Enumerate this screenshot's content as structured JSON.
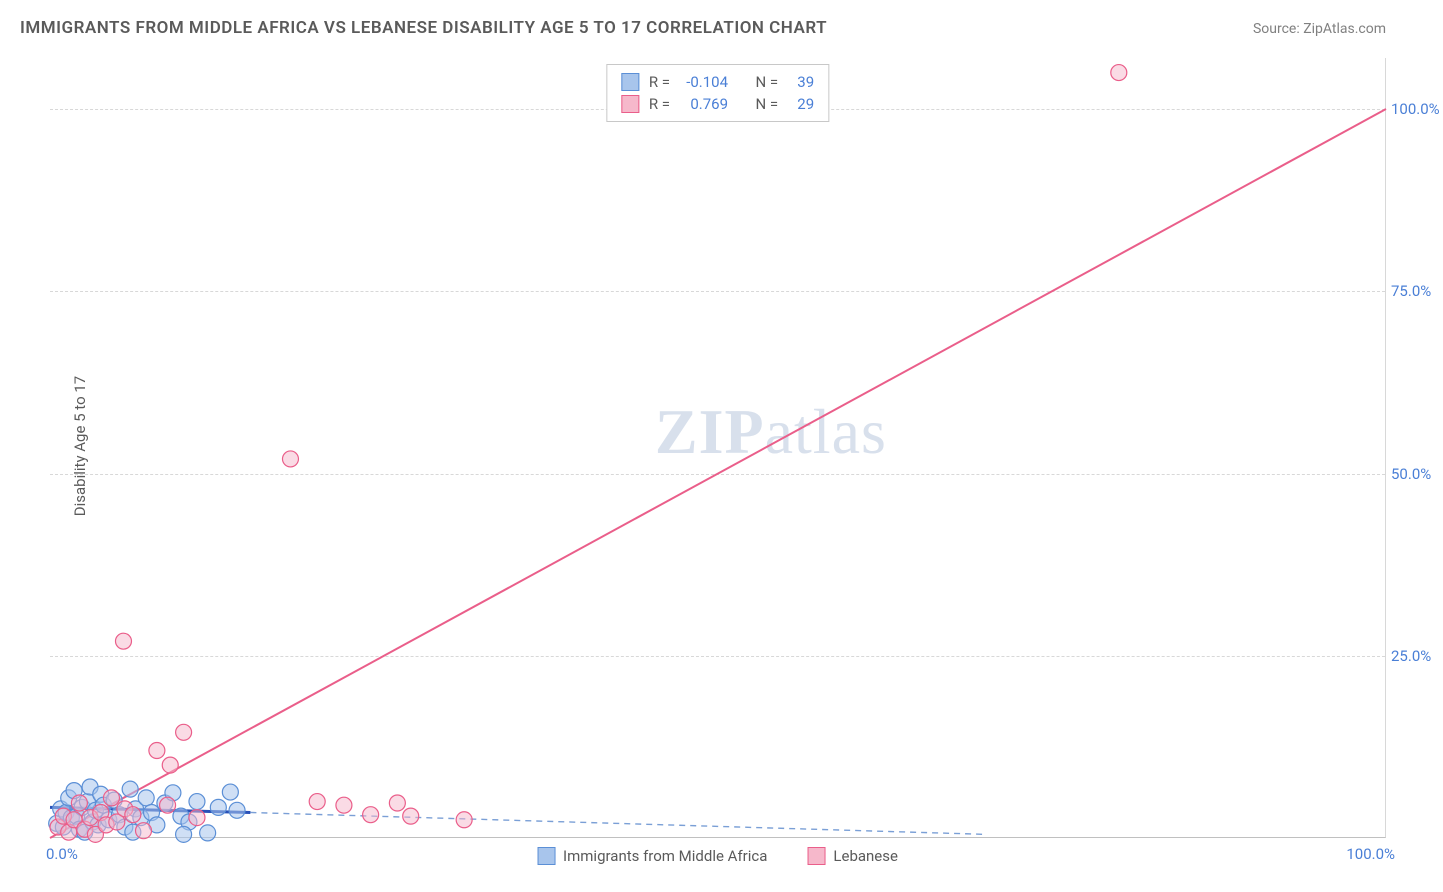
{
  "title": "IMMIGRANTS FROM MIDDLE AFRICA VS LEBANESE DISABILITY AGE 5 TO 17 CORRELATION CHART",
  "source": "Source: ZipAtlas.com",
  "watermark_left": "ZIP",
  "watermark_right": "atlas",
  "y_axis_label": "Disability Age 5 to 17",
  "chart": {
    "type": "scatter",
    "xlim": [
      0,
      100
    ],
    "ylim": [
      0,
      107
    ],
    "x_ticks": [
      {
        "pos": 0,
        "label": "0.0%"
      },
      {
        "pos": 100,
        "label": "100.0%"
      }
    ],
    "y_ticks": [
      {
        "pos": 25,
        "label": "25.0%"
      },
      {
        "pos": 50,
        "label": "50.0%"
      },
      {
        "pos": 75,
        "label": "75.0%"
      },
      {
        "pos": 100,
        "label": "100.0%"
      }
    ],
    "grid_color": "#d8d8d8",
    "background_color": "#ffffff",
    "marker_radius": 8,
    "marker_stroke_width": 1.2,
    "series": [
      {
        "id": "middle_africa",
        "label": "Immigrants from Middle Africa",
        "fill": "#a8c5ec",
        "stroke": "#5b8fd6",
        "fill_opacity": 0.55,
        "R": "-0.104",
        "N": "39",
        "trend": {
          "solid": {
            "x1": 0,
            "y1": 4.2,
            "x2": 15,
            "y2": 3.5,
            "color": "#2850b8",
            "width": 3
          },
          "dashed": {
            "x1": 15,
            "y1": 3.5,
            "x2": 70,
            "y2": 0.5,
            "color": "#7a9fd6",
            "width": 1.4,
            "dash": "6 5"
          }
        },
        "points": [
          [
            0.5,
            2
          ],
          [
            0.8,
            4
          ],
          [
            1.0,
            1.5
          ],
          [
            1.2,
            3.5
          ],
          [
            1.4,
            5.5
          ],
          [
            1.6,
            2.8
          ],
          [
            1.8,
            6.5
          ],
          [
            2.0,
            3
          ],
          [
            2.2,
            1.2
          ],
          [
            2.4,
            4.2
          ],
          [
            2.6,
            0.8
          ],
          [
            2.8,
            5
          ],
          [
            3.0,
            7
          ],
          [
            3.2,
            2.2
          ],
          [
            3.4,
            3.8
          ],
          [
            3.6,
            1.8
          ],
          [
            3.8,
            6
          ],
          [
            4.0,
            4.5
          ],
          [
            4.4,
            2.5
          ],
          [
            4.8,
            5.2
          ],
          [
            5.2,
            3.2
          ],
          [
            5.6,
            1.5
          ],
          [
            6.0,
            6.7
          ],
          [
            6.4,
            4
          ],
          [
            6.8,
            2.8
          ],
          [
            7.2,
            5.5
          ],
          [
            7.6,
            3.5
          ],
          [
            8.0,
            1.8
          ],
          [
            8.6,
            4.8
          ],
          [
            9.2,
            6.2
          ],
          [
            9.8,
            3
          ],
          [
            10.4,
            2.2
          ],
          [
            11,
            5
          ],
          [
            11.8,
            0.7
          ],
          [
            12.6,
            4.2
          ],
          [
            13.5,
            6.3
          ],
          [
            14,
            3.8
          ],
          [
            10,
            0.5
          ],
          [
            6.2,
            0.8
          ]
        ]
      },
      {
        "id": "lebanese",
        "label": "Lebanese",
        "fill": "#f6b8cb",
        "stroke": "#ea5e8a",
        "fill_opacity": 0.5,
        "R": "0.769",
        "N": "29",
        "trend": {
          "solid": {
            "x1": 0,
            "y1": 0,
            "x2": 100,
            "y2": 100,
            "color": "#ea5e8a",
            "width": 2
          }
        },
        "points": [
          [
            0.6,
            1.5
          ],
          [
            1.0,
            3
          ],
          [
            1.4,
            0.8
          ],
          [
            1.8,
            2.5
          ],
          [
            2.2,
            4.8
          ],
          [
            2.6,
            1.2
          ],
          [
            3.0,
            2.8
          ],
          [
            3.4,
            0.5
          ],
          [
            3.8,
            3.5
          ],
          [
            4.2,
            1.8
          ],
          [
            4.6,
            5.5
          ],
          [
            5.0,
            2.2
          ],
          [
            5.6,
            4
          ],
          [
            6.2,
            3.2
          ],
          [
            7.0,
            1
          ],
          [
            8,
            12
          ],
          [
            8.8,
            4.5
          ],
          [
            10,
            14.5
          ],
          [
            11,
            2.8
          ],
          [
            5.5,
            27
          ],
          [
            18,
            52
          ],
          [
            20,
            5
          ],
          [
            22,
            4.5
          ],
          [
            24,
            3.2
          ],
          [
            26,
            4.8
          ],
          [
            27,
            3
          ],
          [
            31,
            2.5
          ],
          [
            80,
            105
          ],
          [
            9,
            10
          ]
        ]
      }
    ]
  }
}
